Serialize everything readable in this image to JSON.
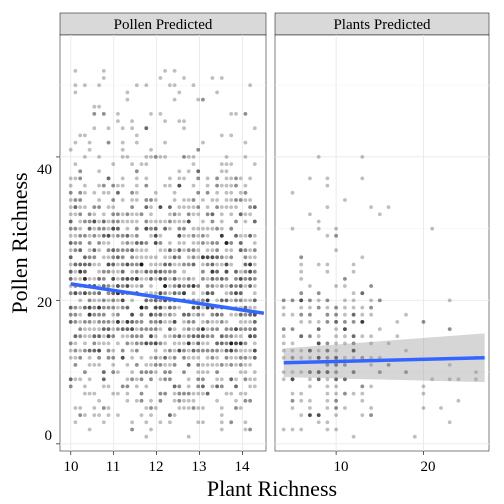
{
  "chart_data": [
    {
      "type": "scatter",
      "facet": "Pollen Predicted",
      "xlim": [
        9.75,
        14.55
      ],
      "ylim": [
        -1,
        57
      ],
      "x_ticks": [
        10,
        11,
        12,
        13,
        14
      ],
      "y_ticks": [
        0,
        20,
        40
      ],
      "grid": true,
      "points": {
        "description": "dense column-wise clouds of semi-transparent black points at discrete plant-richness values; pollen richness spans roughly 1-55, densest between 10 and 32",
        "x_range": [
          10,
          14.3
        ],
        "y_range": [
          1,
          55
        ]
      },
      "trend": {
        "color": "#3366ff",
        "x": [
          10,
          14.5
        ],
        "y": [
          22.3,
          18.2
        ]
      }
    },
    {
      "type": "scatter",
      "facet": "Plants Predicted",
      "xlim": [
        3,
        27.5
      ],
      "ylim": [
        -1,
        57
      ],
      "x_ticks": [
        10,
        20
      ],
      "y_ticks": [
        0,
        20,
        40
      ],
      "grid": true,
      "points": {
        "description": "sparse semi-transparent black points, concentrated at x 5-15 and y 5-25, a few outliers up to about 43",
        "x_range": [
          4,
          27
        ],
        "y_range": [
          1,
          43
        ]
      },
      "trend": {
        "color": "#3366ff",
        "x": [
          4,
          27
        ],
        "y": [
          11.3,
          12.0
        ],
        "ci_lower": [
          9.3,
          8.6
        ],
        "ci_upper": [
          13.3,
          15.4
        ]
      }
    }
  ],
  "facets": [
    "Pollen Predicted",
    "Plants Predicted"
  ],
  "axes": {
    "xlabel": "Plant Richness",
    "ylabel": "Pollen Richness",
    "left_x_ticks": [
      "10",
      "11",
      "12",
      "13",
      "14"
    ],
    "right_x_ticks": [
      "10",
      "20"
    ],
    "y_ticks": [
      "0",
      "20",
      "40"
    ]
  },
  "colors": {
    "strip_bg": "#d9d9d9",
    "trend": "#3366ff",
    "ci_band": "#999999",
    "grid": "#ebebeb",
    "point": "#000000"
  }
}
